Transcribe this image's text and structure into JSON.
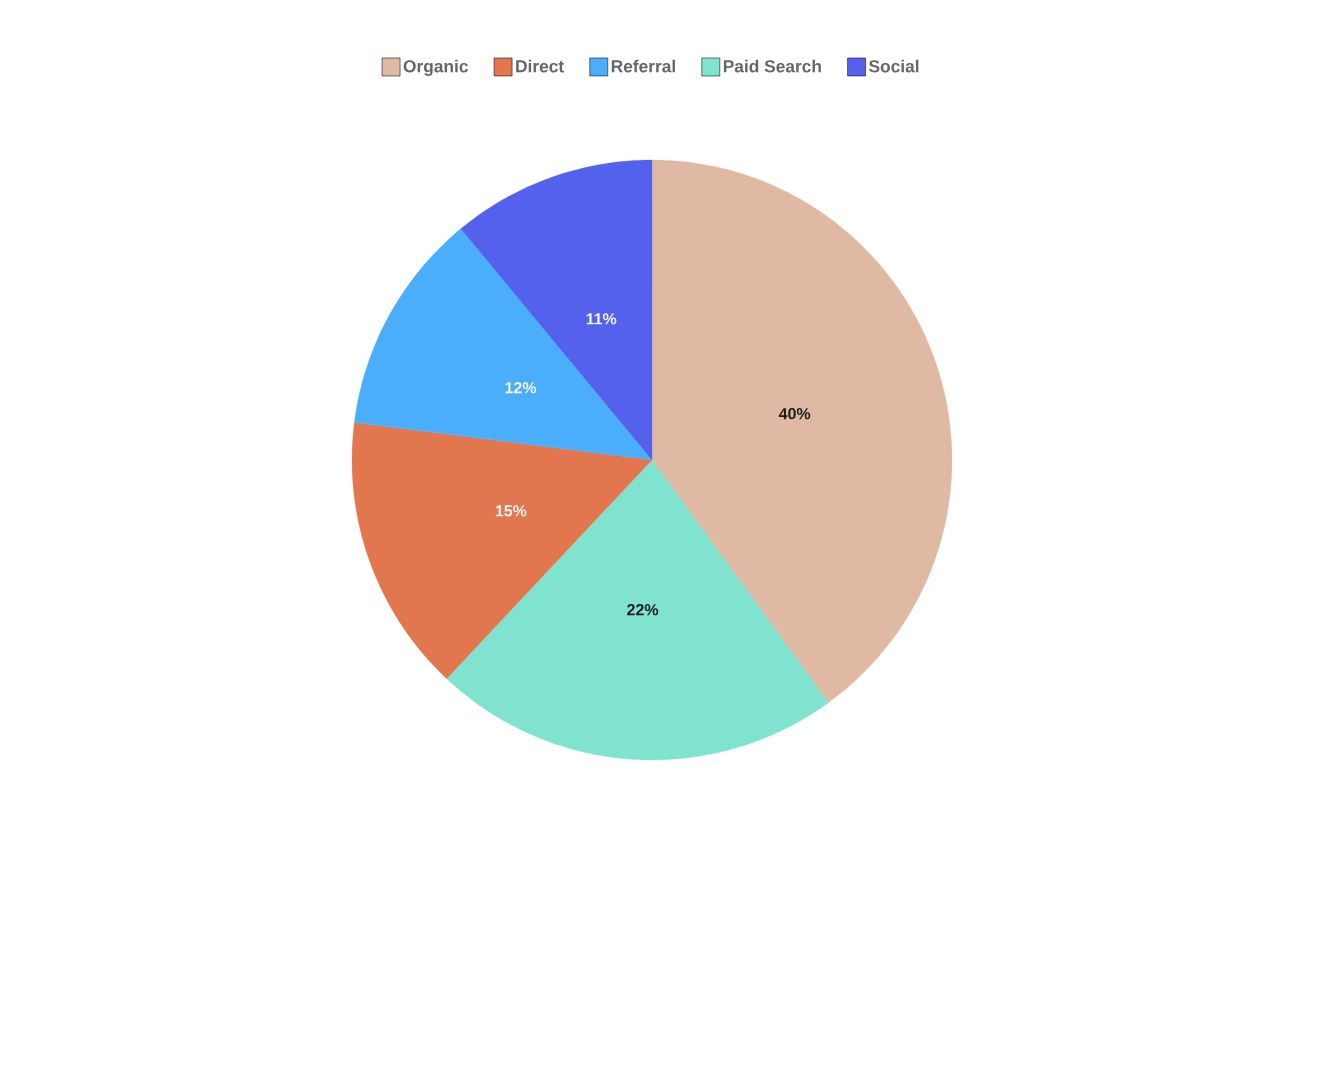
{
  "chart_data": {
    "type": "pie",
    "categories": [
      "Organic",
      "Direct",
      "Referral",
      "Paid Search",
      "Social"
    ],
    "values": [
      40,
      15,
      12,
      22,
      11
    ],
    "colors": [
      "#dfb9a3",
      "#e2774f",
      "#4aaefc",
      "#80e3cf",
      "#5461ed"
    ],
    "value_labels": [
      "40%",
      "15%",
      "12%",
      "22%",
      "11%"
    ],
    "legend": "top"
  }
}
